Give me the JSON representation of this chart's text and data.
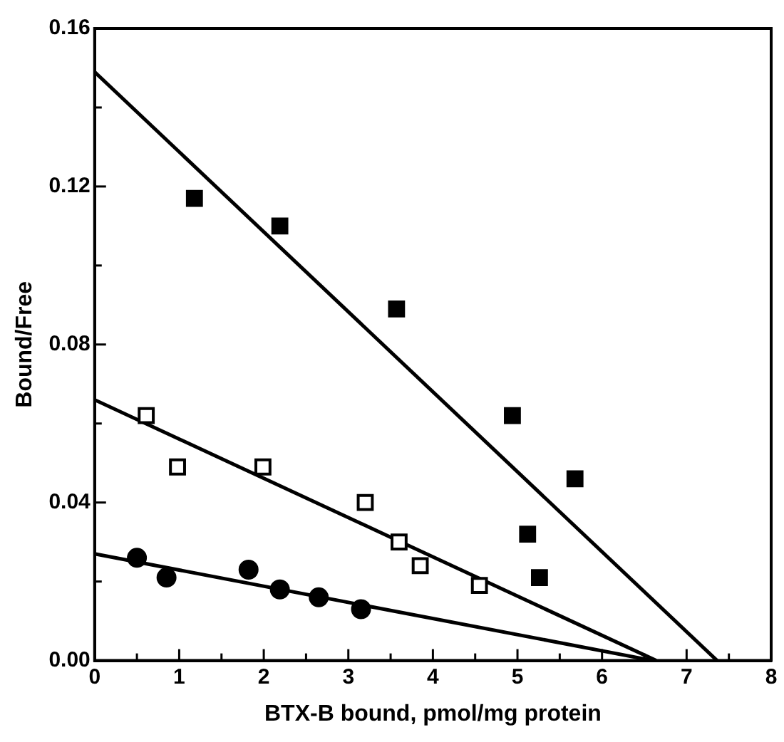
{
  "chart_data": {
    "type": "scatter",
    "xlabel": "BTX-B bound, pmol/mg protein",
    "ylabel": "Bound/Free",
    "xlim": [
      0,
      8
    ],
    "ylim": [
      0,
      0.16
    ],
    "xticks": [
      0,
      {
        "value": 0.5,
        "label": null
      },
      1,
      {
        "value": 1.5,
        "label": null
      },
      2,
      {
        "value": 2.5,
        "label": null
      },
      3,
      {
        "value": 3.5,
        "label": null
      },
      4,
      {
        "value": 4.5,
        "label": null
      },
      5,
      {
        "value": 5.5,
        "label": null
      },
      6,
      {
        "value": 6.5,
        "label": null
      },
      7,
      {
        "value": 7.5,
        "label": null
      },
      8
    ],
    "yticks": [
      {
        "value": 0,
        "label": "0.00"
      },
      {
        "value": 0.02,
        "label": null
      },
      {
        "value": 0.04,
        "label": "0.04"
      },
      {
        "value": 0.06,
        "label": null
      },
      {
        "value": 0.08,
        "label": "0.08"
      },
      {
        "value": 0.1,
        "label": null
      },
      {
        "value": 0.12,
        "label": "0.12"
      },
      {
        "value": 0.14,
        "label": null
      },
      {
        "value": 0.16,
        "label": "0.16"
      }
    ],
    "series": [
      {
        "marker": "square",
        "color": "#000000",
        "x": [
          1.18,
          2.19,
          3.57,
          4.94,
          5.68,
          5.12,
          5.26
        ],
        "values": [
          0.117,
          0.11,
          0.089,
          0.062,
          0.046,
          0.032,
          0.021
        ]
      },
      {
        "marker": "square",
        "color": "#ffffff",
        "x": [
          0.61,
          0.98,
          1.99,
          3.2,
          3.6,
          3.85,
          4.55
        ],
        "values": [
          0.062,
          0.049,
          0.049,
          0.04,
          0.03,
          0.024,
          0.019
        ]
      },
      {
        "marker": "circle",
        "color": "#000000",
        "x": [
          0.5,
          0.85,
          1.82,
          2.19,
          2.65,
          3.15
        ],
        "values": [
          0.026,
          0.021,
          0.023,
          0.018,
          0.016,
          0.013
        ]
      },
      {
        "type": "line",
        "marker": "none",
        "line_style": "solid",
        "color": "#000000",
        "x": [
          0,
          7.36
        ],
        "values": [
          0.149,
          0
        ]
      },
      {
        "type": "line",
        "marker": "none",
        "line_style": "solid",
        "color": "#000000",
        "x": [
          0,
          6.64
        ],
        "values": [
          0.066,
          0
        ]
      },
      {
        "type": "line",
        "marker": "none",
        "line_style": "solid",
        "color": "#000000",
        "x": [
          0,
          6.6
        ],
        "values": [
          0.027,
          0
        ]
      }
    ]
  }
}
